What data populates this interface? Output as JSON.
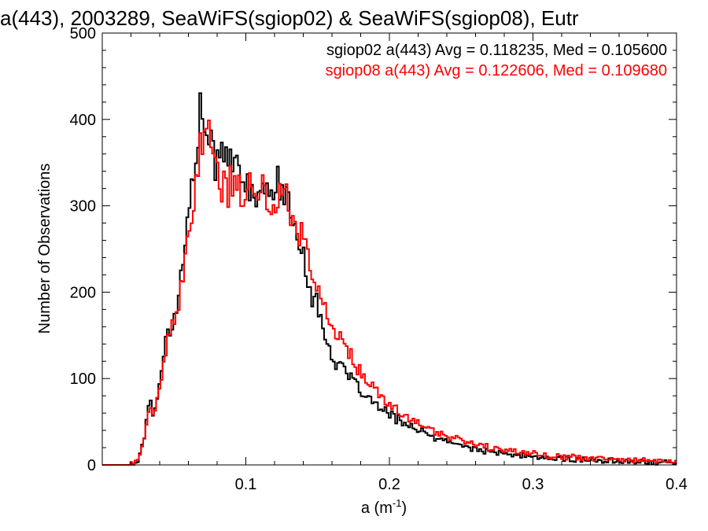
{
  "chart_data": {
    "type": "line",
    "step": true,
    "title": "a(443), 2003289, SeaWiFS(sgiop02) & SeaWiFS(sgiop08), Eutr",
    "xlabel_base": "a (m",
    "xlabel_sup": "-1",
    "xlabel_tail": ")",
    "ylabel": "Number of Observations",
    "xlim": [
      0.0,
      0.4
    ],
    "ylim": [
      0,
      500
    ],
    "xticks": [
      0.1,
      0.2,
      0.3,
      0.4
    ],
    "xtick_labels": [
      "0.1",
      "0.2",
      "0.3",
      "0.4"
    ],
    "yticks": [
      0,
      100,
      200,
      300,
      400,
      500
    ],
    "ytick_labels": [
      "0",
      "100",
      "200",
      "300",
      "400",
      "500"
    ],
    "legend_position": "top-right",
    "bin_width": 0.0015,
    "series": [
      {
        "name": "sgiop02",
        "label": "sgiop02 a(443) Avg = 0.118235, Med = 0.105600",
        "color": "#000000",
        "points": [
          [
            0.0,
            0
          ],
          [
            0.02,
            0
          ],
          [
            0.025,
            5
          ],
          [
            0.03,
            40
          ],
          [
            0.033,
            80
          ],
          [
            0.036,
            55
          ],
          [
            0.04,
            100
          ],
          [
            0.045,
            150
          ],
          [
            0.05,
            170
          ],
          [
            0.055,
            220
          ],
          [
            0.06,
            285
          ],
          [
            0.063,
            330
          ],
          [
            0.066,
            380
          ],
          [
            0.068,
            405
          ],
          [
            0.07,
            390
          ],
          [
            0.073,
            395
          ],
          [
            0.076,
            360
          ],
          [
            0.08,
            345
          ],
          [
            0.085,
            375
          ],
          [
            0.09,
            360
          ],
          [
            0.095,
            330
          ],
          [
            0.1,
            320
          ],
          [
            0.105,
            320
          ],
          [
            0.11,
            305
          ],
          [
            0.115,
            315
          ],
          [
            0.12,
            335
          ],
          [
            0.125,
            320
          ],
          [
            0.13,
            295
          ],
          [
            0.135,
            275
          ],
          [
            0.14,
            245
          ],
          [
            0.145,
            205
          ],
          [
            0.15,
            180
          ],
          [
            0.155,
            155
          ],
          [
            0.16,
            125
          ],
          [
            0.165,
            115
          ],
          [
            0.17,
            105
          ],
          [
            0.175,
            95
          ],
          [
            0.18,
            85
          ],
          [
            0.185,
            78
          ],
          [
            0.19,
            70
          ],
          [
            0.2,
            58
          ],
          [
            0.21,
            50
          ],
          [
            0.22,
            40
          ],
          [
            0.23,
            32
          ],
          [
            0.24,
            28
          ],
          [
            0.25,
            22
          ],
          [
            0.26,
            18
          ],
          [
            0.27,
            15
          ],
          [
            0.28,
            12
          ],
          [
            0.29,
            11
          ],
          [
            0.3,
            10
          ],
          [
            0.31,
            8
          ],
          [
            0.32,
            7
          ],
          [
            0.33,
            6
          ],
          [
            0.34,
            6
          ],
          [
            0.35,
            5
          ],
          [
            0.36,
            5
          ],
          [
            0.37,
            4
          ],
          [
            0.38,
            3
          ],
          [
            0.39,
            3
          ],
          [
            0.4,
            2
          ]
        ]
      },
      {
        "name": "sgiop08",
        "label": "sgiop08 a(443) Avg = 0.122606, Med = 0.109680",
        "color": "#ff0000",
        "points": [
          [
            0.0,
            0
          ],
          [
            0.02,
            0
          ],
          [
            0.025,
            5
          ],
          [
            0.03,
            35
          ],
          [
            0.033,
            70
          ],
          [
            0.036,
            55
          ],
          [
            0.04,
            90
          ],
          [
            0.045,
            140
          ],
          [
            0.05,
            160
          ],
          [
            0.055,
            200
          ],
          [
            0.06,
            260
          ],
          [
            0.063,
            300
          ],
          [
            0.066,
            345
          ],
          [
            0.07,
            385
          ],
          [
            0.073,
            395
          ],
          [
            0.076,
            350
          ],
          [
            0.08,
            335
          ],
          [
            0.085,
            320
          ],
          [
            0.09,
            325
          ],
          [
            0.095,
            315
          ],
          [
            0.1,
            325
          ],
          [
            0.105,
            330
          ],
          [
            0.11,
            320
          ],
          [
            0.115,
            300
          ],
          [
            0.12,
            310
          ],
          [
            0.125,
            320
          ],
          [
            0.13,
            300
          ],
          [
            0.135,
            285
          ],
          [
            0.14,
            260
          ],
          [
            0.145,
            230
          ],
          [
            0.15,
            200
          ],
          [
            0.155,
            180
          ],
          [
            0.16,
            160
          ],
          [
            0.165,
            150
          ],
          [
            0.17,
            135
          ],
          [
            0.175,
            120
          ],
          [
            0.18,
            105
          ],
          [
            0.185,
            95
          ],
          [
            0.19,
            85
          ],
          [
            0.2,
            70
          ],
          [
            0.21,
            58
          ],
          [
            0.22,
            48
          ],
          [
            0.23,
            40
          ],
          [
            0.24,
            34
          ],
          [
            0.25,
            28
          ],
          [
            0.26,
            24
          ],
          [
            0.27,
            20
          ],
          [
            0.28,
            17
          ],
          [
            0.29,
            15
          ],
          [
            0.3,
            13
          ],
          [
            0.31,
            11
          ],
          [
            0.32,
            10
          ],
          [
            0.33,
            9
          ],
          [
            0.34,
            8
          ],
          [
            0.35,
            7
          ],
          [
            0.36,
            6
          ],
          [
            0.37,
            6
          ],
          [
            0.38,
            5
          ],
          [
            0.39,
            4
          ],
          [
            0.4,
            4
          ]
        ]
      }
    ]
  }
}
